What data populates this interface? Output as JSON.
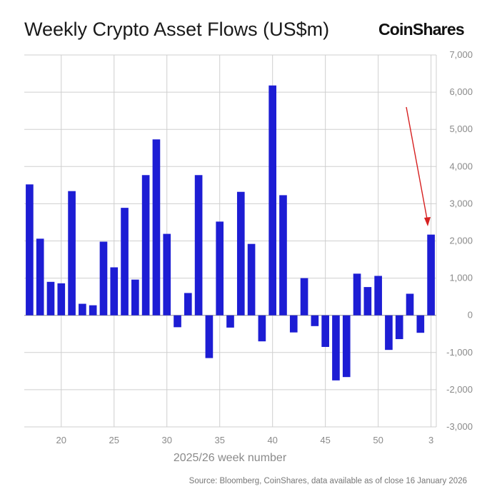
{
  "header": {
    "title": "Weekly Crypto Asset Flows (US$m)",
    "brand": "CoinShares"
  },
  "source": "Source: Bloomberg, CoinShares, data available as of close 16 January 2026",
  "colors": {
    "bar": "#1d1dd4",
    "grid": "#cfcfcf",
    "annotation_arrow": "#d62020"
  },
  "chart_data": {
    "type": "bar",
    "title": "Weekly Crypto Asset Flows (US$m)",
    "xlabel": "2025/26 week number",
    "ylabel": "",
    "ylim": [
      -3000,
      7000
    ],
    "y_ticks": [
      -3000,
      -2000,
      -1000,
      0,
      1000,
      2000,
      3000,
      4000,
      5000,
      6000,
      7000
    ],
    "y_tick_labels": [
      "-3,000",
      "-2,000",
      "-1,000",
      "0",
      "1,000",
      "2,000",
      "3,000",
      "4,000",
      "5,000",
      "6,000",
      "7,000"
    ],
    "x_ticks": [
      "20",
      "25",
      "30",
      "35",
      "40",
      "45",
      "50",
      "3"
    ],
    "y_axis_side": "right",
    "grid": true,
    "categories": [
      "17",
      "18",
      "19",
      "20",
      "21",
      "22",
      "23",
      "24",
      "25",
      "26",
      "27",
      "28",
      "29",
      "30",
      "31",
      "32",
      "33",
      "34",
      "35",
      "36",
      "37",
      "38",
      "39",
      "40",
      "41",
      "42",
      "43",
      "44",
      "45",
      "46",
      "47",
      "48",
      "49",
      "50",
      "51",
      "52",
      "1",
      "2",
      "3"
    ],
    "values": [
      3520,
      2060,
      900,
      860,
      3340,
      310,
      270,
      1980,
      1290,
      2890,
      960,
      3770,
      4730,
      2190,
      -320,
      600,
      3770,
      -1150,
      2520,
      -330,
      3320,
      1920,
      -700,
      6180,
      3230,
      -460,
      1000,
      -290,
      -850,
      -1750,
      -1660,
      1120,
      760,
      1060,
      -930,
      -640,
      580,
      -470,
      2170
    ],
    "annotation": "arrow pointing to the latest week (week 3)"
  }
}
